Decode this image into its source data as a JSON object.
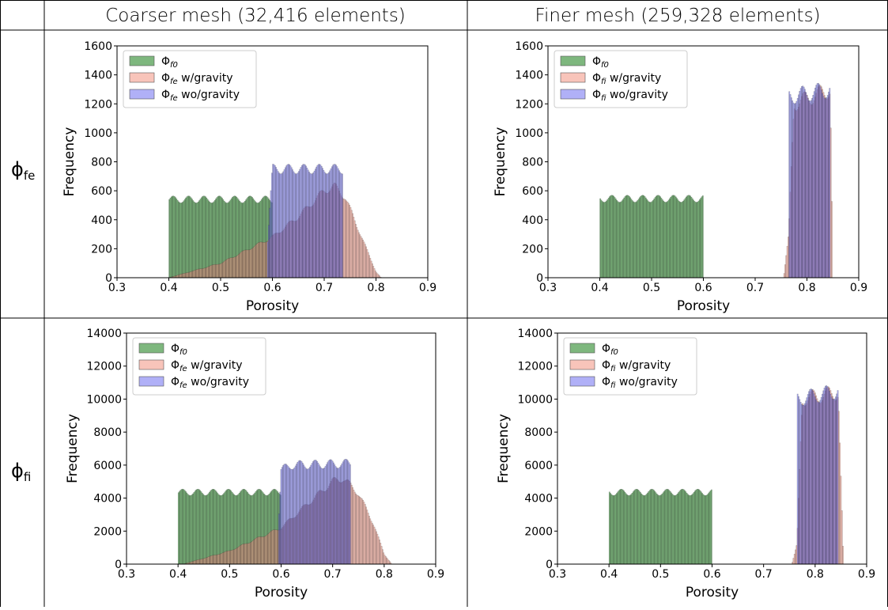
{
  "table": {
    "col_headers": [
      "Coarser mesh (32,416 elements)",
      "Finer mesh (259,328 elements)"
    ],
    "row_headers": [
      {
        "base": "ϕ",
        "sub": "fe"
      },
      {
        "base": "ϕ",
        "sub": "fi"
      }
    ]
  },
  "colors": {
    "initial": "#2e8b2e",
    "with_gravity": "#f4a090",
    "without_gravity": "#7070f0",
    "grid": "#000000"
  },
  "chart_data": [
    {
      "type": "bar",
      "panel": "coarse-fe",
      "xlabel": "Porosity",
      "ylabel": "Frequency",
      "xlim": [
        0.3,
        0.9
      ],
      "ylim": [
        0,
        1600
      ],
      "xticks": [
        "0.3",
        "0.4",
        "0.5",
        "0.6",
        "0.7",
        "0.8",
        "0.9"
      ],
      "yticks": [
        "0",
        "200",
        "400",
        "600",
        "800",
        "1000",
        "1200",
        "1400",
        "1600"
      ],
      "legend_position": "top-left",
      "series": [
        {
          "name": "Φf0",
          "legend_base": "Φ",
          "legend_sub": "f0",
          "legend_text": "",
          "x_range": [
            0.4,
            0.6
          ],
          "profile": [
            [
              0.4,
              540
            ],
            [
              0.6,
              540
            ]
          ]
        },
        {
          "name": "Φfe w/gravity",
          "legend_base": "Φ",
          "legend_sub": "fe",
          "legend_text": " w/gravity",
          "x_range": [
            0.4,
            0.81
          ],
          "profile": [
            [
              0.4,
              0
            ],
            [
              0.5,
              100
            ],
            [
              0.6,
              280
            ],
            [
              0.65,
              420
            ],
            [
              0.7,
              600
            ],
            [
              0.72,
              630
            ],
            [
              0.74,
              560
            ],
            [
              0.77,
              300
            ],
            [
              0.8,
              40
            ],
            [
              0.81,
              0
            ]
          ]
        },
        {
          "name": "Φfe wo/gravity",
          "legend_base": "Φ",
          "legend_sub": "fe",
          "legend_text": " wo/gravity",
          "x_range": [
            0.59,
            0.735
          ],
          "profile": [
            [
              0.59,
              200
            ],
            [
              0.6,
              750
            ],
            [
              0.735,
              750
            ]
          ]
        }
      ]
    },
    {
      "type": "bar",
      "panel": "fine-fe",
      "xlabel": "Porosity",
      "ylabel": "Frequency",
      "xlim": [
        0.3,
        0.9
      ],
      "ylim": [
        0,
        1600
      ],
      "xticks": [
        "0.3",
        "0.4",
        "0.5",
        "0.6",
        "0.7",
        "0.8",
        "0.9"
      ],
      "yticks": [
        "0",
        "200",
        "400",
        "600",
        "800",
        "1000",
        "1200",
        "1400",
        "1600"
      ],
      "legend_position": "top-left",
      "series": [
        {
          "name": "Φf0",
          "legend_base": "Φ",
          "legend_sub": "f0",
          "legend_text": "",
          "x_range": [
            0.4,
            0.6
          ],
          "profile": [
            [
              0.4,
              545
            ],
            [
              0.6,
              545
            ]
          ]
        },
        {
          "name": "Φfi w/gravity",
          "legend_base": "Φ",
          "legend_sub": "fi",
          "legend_text": " w/gravity",
          "x_range": [
            0.755,
            0.85
          ],
          "profile": [
            [
              0.755,
              0
            ],
            [
              0.765,
              300
            ],
            [
              0.775,
              1200
            ],
            [
              0.845,
              1300
            ],
            [
              0.85,
              0
            ]
          ]
        },
        {
          "name": "Φfi wo/gravity",
          "legend_base": "Φ",
          "legend_sub": "fi",
          "legend_text": " wo/gravity",
          "x_range": [
            0.765,
            0.845
          ],
          "profile": [
            [
              0.765,
              1250
            ],
            [
              0.845,
              1300
            ]
          ]
        }
      ]
    },
    {
      "type": "bar",
      "panel": "coarse-fi",
      "xlabel": "Porosity",
      "ylabel": "Frequency",
      "xlim": [
        0.3,
        0.9
      ],
      "ylim": [
        0,
        14000
      ],
      "xticks": [
        "0.3",
        "0.4",
        "0.5",
        "0.6",
        "0.7",
        "0.8",
        "0.9"
      ],
      "yticks": [
        "0",
        "2000",
        "4000",
        "6000",
        "8000",
        "10000",
        "12000",
        "14000"
      ],
      "legend_position": "top-left",
      "series": [
        {
          "name": "Φf0",
          "legend_base": "Φ",
          "legend_sub": "f0",
          "legend_text": "",
          "x_range": [
            0.4,
            0.6
          ],
          "profile": [
            [
              0.4,
              4350
            ],
            [
              0.6,
              4350
            ]
          ]
        },
        {
          "name": "Φfe w/gravity",
          "legend_base": "Φ",
          "legend_sub": "fe",
          "legend_text": " w/gravity",
          "x_range": [
            0.41,
            0.815
          ],
          "profile": [
            [
              0.41,
              0
            ],
            [
              0.5,
              800
            ],
            [
              0.6,
              2200
            ],
            [
              0.65,
              3600
            ],
            [
              0.7,
              5000
            ],
            [
              0.72,
              5200
            ],
            [
              0.75,
              4300
            ],
            [
              0.78,
              2400
            ],
            [
              0.8,
              600
            ],
            [
              0.815,
              0
            ]
          ]
        },
        {
          "name": "Φfe wo/gravity",
          "legend_base": "Φ",
          "legend_sub": "fe",
          "legend_text": " wo/gravity",
          "x_range": [
            0.595,
            0.735
          ],
          "profile": [
            [
              0.595,
              2500
            ],
            [
              0.6,
              5700
            ],
            [
              0.62,
              6000
            ],
            [
              0.735,
              6100
            ]
          ]
        }
      ]
    },
    {
      "type": "bar",
      "panel": "fine-fi",
      "xlabel": "Porosity",
      "ylabel": "Frequency",
      "xlim": [
        0.3,
        0.9
      ],
      "ylim": [
        0,
        14000
      ],
      "xticks": [
        "0.3",
        "0.4",
        "0.5",
        "0.6",
        "0.7",
        "0.8",
        "0.9"
      ],
      "yticks": [
        "0",
        "2000",
        "4000",
        "6000",
        "8000",
        "10000",
        "12000",
        "14000"
      ],
      "legend_position": "top-left",
      "series": [
        {
          "name": "Φf0",
          "legend_base": "Φ",
          "legend_sub": "f0",
          "legend_text": "",
          "x_range": [
            0.4,
            0.6
          ],
          "profile": [
            [
              0.4,
              4350
            ],
            [
              0.6,
              4350
            ]
          ]
        },
        {
          "name": "Φfi w/gravity",
          "legend_base": "Φ",
          "legend_sub": "fi",
          "legend_text": " w/gravity",
          "x_range": [
            0.755,
            0.855
          ],
          "profile": [
            [
              0.755,
              0
            ],
            [
              0.765,
              1200
            ],
            [
              0.775,
              10000
            ],
            [
              0.845,
              10400
            ],
            [
              0.855,
              0
            ]
          ]
        },
        {
          "name": "Φfi wo/gravity",
          "legend_base": "Φ",
          "legend_sub": "fi",
          "legend_text": " wo/gravity",
          "x_range": [
            0.765,
            0.845
          ],
          "profile": [
            [
              0.765,
              10000
            ],
            [
              0.845,
              10500
            ]
          ]
        }
      ]
    }
  ]
}
